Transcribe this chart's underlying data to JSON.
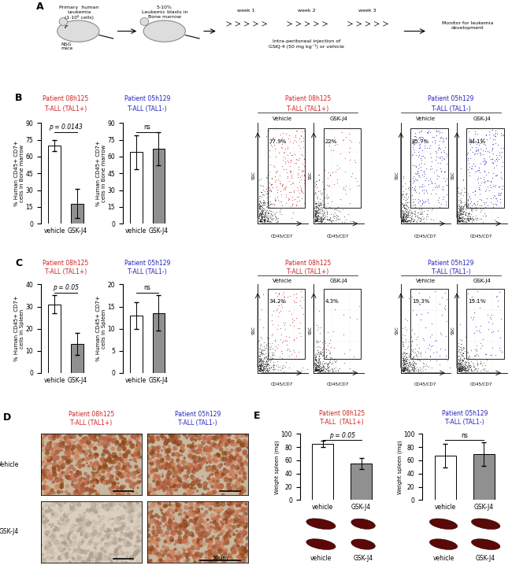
{
  "panel_B": {
    "title1": "Patient 08h125",
    "subtitle1": "T-ALL (TAL1+)",
    "title2": "Patient 05h129",
    "subtitle2": "T-ALL (TAL1-)",
    "bar1_vehicle": 70,
    "bar1_gsk": 18,
    "bar1_vehicle_err": 5,
    "bar1_gsk_err": 13,
    "bar1_ylim": [
      0,
      90
    ],
    "bar1_yticks": [
      0,
      15,
      30,
      45,
      60,
      75,
      90
    ],
    "bar2_vehicle": 64,
    "bar2_gsk": 67,
    "bar2_vehicle_err": 15,
    "bar2_gsk_err": 15,
    "bar2_ylim": [
      0,
      90
    ],
    "bar2_yticks": [
      0,
      15,
      30,
      45,
      60,
      75,
      90
    ],
    "ylabel": "% Human CD45+ CD7+\ncells in Bone marrow",
    "pval1": "p = 0.0143",
    "pval2": "ns",
    "flow_08v": "77.9%",
    "flow_08g": "22%",
    "flow_05v": "85.7%",
    "flow_05g": "84.1%"
  },
  "panel_C": {
    "title1": "Patient 08h125",
    "subtitle1": "T-ALL (TAL1+)",
    "title2": "Patient 05h129",
    "subtitle2": "T-ALL (TAL1-)",
    "bar1_vehicle": 31,
    "bar1_gsk": 13,
    "bar1_vehicle_err": 4,
    "bar1_gsk_err": 5,
    "bar1_ylim": [
      0,
      40
    ],
    "bar1_yticks": [
      0,
      10,
      20,
      30,
      40
    ],
    "bar2_vehicle": 13,
    "bar2_gsk": 13.5,
    "bar2_vehicle_err": 3,
    "bar2_gsk_err": 4,
    "bar2_ylim": [
      0,
      20
    ],
    "bar2_yticks": [
      0,
      5,
      10,
      15,
      20
    ],
    "ylabel": "% Human CD45+ CD7+\ncells in Spleen",
    "pval1": "p = 0.05",
    "pval2": "ns",
    "flow_08v": "34.2%",
    "flow_08g": "4.3%",
    "flow_05v": "19.3%",
    "flow_05g": "19.1%"
  },
  "panel_E": {
    "title1": "Patient 08h125",
    "subtitle1": "T-ALL  (TAL1+)",
    "title2": "Patient 05h129",
    "subtitle2": "T-ALL (TAL1-)",
    "bar1_vehicle": 85,
    "bar1_gsk": 55,
    "bar1_vehicle_err": 5,
    "bar1_gsk_err": 8,
    "bar1_ylim": [
      0,
      100
    ],
    "bar1_yticks": [
      0,
      20,
      40,
      60,
      80,
      100
    ],
    "bar2_vehicle": 67,
    "bar2_gsk": 69,
    "bar2_vehicle_err": 18,
    "bar2_gsk_err": 18,
    "bar2_ylim": [
      0,
      100
    ],
    "bar2_yticks": [
      0,
      20,
      40,
      60,
      80,
      100
    ],
    "ylabel": "Weight spleen (mg)",
    "pval1": "p = 0.05",
    "pval2": "ns"
  },
  "colors": {
    "vehicle_bar": "#ffffff",
    "gsk_bar": "#909090",
    "bar_edge": "#000000",
    "red": "#cc2222",
    "blue": "#2222bb"
  }
}
